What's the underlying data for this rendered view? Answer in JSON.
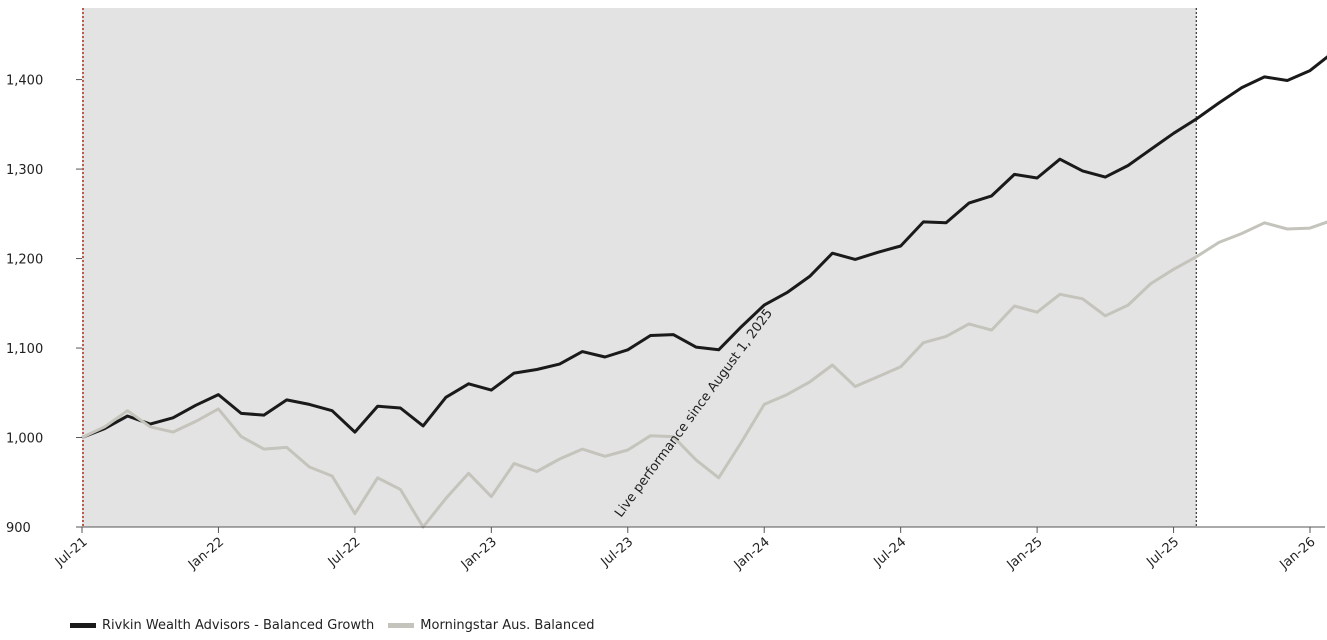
{
  "chart_data": {
    "type": "line",
    "x_ticks": [
      "Jul-21",
      "Jan-22",
      "Jul-22",
      "Jan-23",
      "Jul-23",
      "Jan-24",
      "Jul-24",
      "Jan-25",
      "Jul-25",
      "Jan-26"
    ],
    "y_ticks": [
      900,
      1000,
      1100,
      1200,
      1300,
      1400
    ],
    "y_tick_labels": [
      "900",
      "1,000",
      "1,100",
      "1,200",
      "1,300",
      "1,400"
    ],
    "ylim": [
      900,
      1480
    ],
    "x_range": [
      "2021-07",
      "2026-01"
    ],
    "shaded_region": {
      "from": "2021-07",
      "to": "2025-08"
    },
    "live_marker": "2025-08",
    "annotation": "Live performance since August 1, 2025",
    "grid": false,
    "legend_position": "bottom-left",
    "series": [
      {
        "name": "Rivkin Wealth Advisors - Balanced Growth",
        "color": "#1a1a1a",
        "points": [
          [
            "2021-07",
            1000
          ],
          [
            "2021-08",
            1010
          ],
          [
            "2021-09",
            1024
          ],
          [
            "2021-10",
            1015
          ],
          [
            "2021-11",
            1022
          ],
          [
            "2021-12",
            1036
          ],
          [
            "2022-01",
            1048
          ],
          [
            "2022-02",
            1027
          ],
          [
            "2022-03",
            1025
          ],
          [
            "2022-04",
            1042
          ],
          [
            "2022-05",
            1037
          ],
          [
            "2022-06",
            1030
          ],
          [
            "2022-07",
            1006
          ],
          [
            "2022-08",
            1035
          ],
          [
            "2022-09",
            1033
          ],
          [
            "2022-10",
            1013
          ],
          [
            "2022-11",
            1045
          ],
          [
            "2022-12",
            1060
          ],
          [
            "2023-01",
            1053
          ],
          [
            "2023-02",
            1072
          ],
          [
            "2023-03",
            1076
          ],
          [
            "2023-04",
            1082
          ],
          [
            "2023-05",
            1096
          ],
          [
            "2023-06",
            1090
          ],
          [
            "2023-07",
            1098
          ],
          [
            "2023-08",
            1114
          ],
          [
            "2023-09",
            1115
          ],
          [
            "2023-10",
            1101
          ],
          [
            "2023-11",
            1098
          ],
          [
            "2023-12",
            1124
          ],
          [
            "2024-01",
            1148
          ],
          [
            "2024-02",
            1162
          ],
          [
            "2024-03",
            1180
          ],
          [
            "2024-04",
            1206
          ],
          [
            "2024-05",
            1199
          ],
          [
            "2024-06",
            1207
          ],
          [
            "2024-07",
            1214
          ],
          [
            "2024-08",
            1241
          ],
          [
            "2024-09",
            1240
          ],
          [
            "2024-10",
            1262
          ],
          [
            "2024-11",
            1270
          ],
          [
            "2024-12",
            1294
          ],
          [
            "2025-01",
            1290
          ],
          [
            "2025-02",
            1311
          ],
          [
            "2025-03",
            1298
          ],
          [
            "2025-04",
            1291
          ],
          [
            "2025-05",
            1304
          ],
          [
            "2025-06",
            1322
          ],
          [
            "2025-07",
            1340
          ],
          [
            "2025-08",
            1356
          ],
          [
            "2025-09",
            1374
          ],
          [
            "2025-10",
            1391
          ],
          [
            "2025-11",
            1403
          ],
          [
            "2025-12",
            1399
          ],
          [
            "2026-01",
            1410
          ],
          [
            "2026-02",
            1430
          ]
        ]
      },
      {
        "name": "Morningstar Aus. Balanced",
        "color": "#c4c4bc",
        "points": [
          [
            "2021-07",
            1000
          ],
          [
            "2021-08",
            1012
          ],
          [
            "2021-09",
            1030
          ],
          [
            "2021-10",
            1012
          ],
          [
            "2021-11",
            1006
          ],
          [
            "2021-12",
            1018
          ],
          [
            "2022-01",
            1032
          ],
          [
            "2022-02",
            1001
          ],
          [
            "2022-03",
            987
          ],
          [
            "2022-04",
            989
          ],
          [
            "2022-05",
            967
          ],
          [
            "2022-06",
            957
          ],
          [
            "2022-07",
            915
          ],
          [
            "2022-08",
            955
          ],
          [
            "2022-09",
            942
          ],
          [
            "2022-10",
            900
          ],
          [
            "2022-11",
            932
          ],
          [
            "2022-12",
            960
          ],
          [
            "2023-01",
            934
          ],
          [
            "2023-02",
            971
          ],
          [
            "2023-03",
            962
          ],
          [
            "2023-04",
            976
          ],
          [
            "2023-05",
            987
          ],
          [
            "2023-06",
            979
          ],
          [
            "2023-07",
            986
          ],
          [
            "2023-08",
            1002
          ],
          [
            "2023-09",
            1001
          ],
          [
            "2023-10",
            975
          ],
          [
            "2023-11",
            955
          ],
          [
            "2023-12",
            995
          ],
          [
            "2024-01",
            1037
          ],
          [
            "2024-02",
            1048
          ],
          [
            "2024-03",
            1062
          ],
          [
            "2024-04",
            1081
          ],
          [
            "2024-05",
            1057
          ],
          [
            "2024-06",
            1068
          ],
          [
            "2024-07",
            1079
          ],
          [
            "2024-08",
            1106
          ],
          [
            "2024-09",
            1113
          ],
          [
            "2024-10",
            1127
          ],
          [
            "2024-11",
            1120
          ],
          [
            "2024-12",
            1147
          ],
          [
            "2025-01",
            1140
          ],
          [
            "2025-02",
            1160
          ],
          [
            "2025-03",
            1155
          ],
          [
            "2025-04",
            1136
          ],
          [
            "2025-05",
            1148
          ],
          [
            "2025-06",
            1172
          ],
          [
            "2025-07",
            1188
          ],
          [
            "2025-08",
            1202
          ],
          [
            "2025-09",
            1218
          ],
          [
            "2025-10",
            1228
          ],
          [
            "2025-11",
            1240
          ],
          [
            "2025-12",
            1233
          ],
          [
            "2026-01",
            1234
          ],
          [
            "2026-02",
            1243
          ]
        ]
      }
    ]
  }
}
